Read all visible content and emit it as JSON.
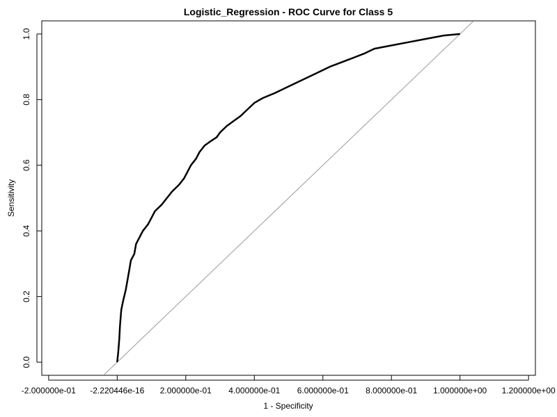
{
  "chart_data": {
    "type": "line",
    "title": "Logistic_Regression - ROC Curve for Class 5",
    "xlabel": "1 - Specificity",
    "ylabel": "Sensitivity",
    "xlim": [
      -0.22,
      1.22
    ],
    "ylim": [
      -0.04,
      1.04
    ],
    "x_ticks": [
      {
        "value": -0.2,
        "label": "-2.000000e-01"
      },
      {
        "value": 0.0,
        "label": "-2.220446e-16"
      },
      {
        "value": 0.2,
        "label": "2.000000e-01"
      },
      {
        "value": 0.4,
        "label": "4.000000e-01"
      },
      {
        "value": 0.6,
        "label": "6.000000e-01"
      },
      {
        "value": 0.8,
        "label": "8.000000e-01"
      },
      {
        "value": 1.0,
        "label": "1.000000e+00"
      },
      {
        "value": 1.2,
        "label": "1.200000e+00"
      }
    ],
    "y_ticks": [
      {
        "value": 0.0,
        "label": "0.0"
      },
      {
        "value": 0.2,
        "label": "0.2"
      },
      {
        "value": 0.4,
        "label": "0.4"
      },
      {
        "value": 0.6,
        "label": "0.6"
      },
      {
        "value": 0.8,
        "label": "0.8"
      },
      {
        "value": 1.0,
        "label": "1.0"
      }
    ],
    "grid": false,
    "colors": {
      "curve": "#000000",
      "reference": "#999999",
      "frame": "#000000"
    },
    "reference_line": {
      "from": [
        -0.04,
        -0.04
      ],
      "to": [
        1.04,
        1.04
      ]
    },
    "series": [
      {
        "points": [
          [
            0.0,
            0.0
          ],
          [
            0.003,
            0.03
          ],
          [
            0.006,
            0.07
          ],
          [
            0.008,
            0.11
          ],
          [
            0.012,
            0.16
          ],
          [
            0.018,
            0.19
          ],
          [
            0.025,
            0.22
          ],
          [
            0.03,
            0.25
          ],
          [
            0.035,
            0.28
          ],
          [
            0.04,
            0.31
          ],
          [
            0.05,
            0.33
          ],
          [
            0.055,
            0.36
          ],
          [
            0.065,
            0.38
          ],
          [
            0.075,
            0.4
          ],
          [
            0.09,
            0.42
          ],
          [
            0.1,
            0.44
          ],
          [
            0.11,
            0.46
          ],
          [
            0.13,
            0.48
          ],
          [
            0.145,
            0.5
          ],
          [
            0.16,
            0.52
          ],
          [
            0.18,
            0.54
          ],
          [
            0.195,
            0.56
          ],
          [
            0.205,
            0.58
          ],
          [
            0.215,
            0.6
          ],
          [
            0.23,
            0.62
          ],
          [
            0.24,
            0.64
          ],
          [
            0.255,
            0.66
          ],
          [
            0.275,
            0.675
          ],
          [
            0.29,
            0.685
          ],
          [
            0.3,
            0.7
          ],
          [
            0.32,
            0.72
          ],
          [
            0.34,
            0.735
          ],
          [
            0.36,
            0.75
          ],
          [
            0.38,
            0.77
          ],
          [
            0.4,
            0.79
          ],
          [
            0.425,
            0.805
          ],
          [
            0.46,
            0.82
          ],
          [
            0.5,
            0.84
          ],
          [
            0.54,
            0.86
          ],
          [
            0.58,
            0.88
          ],
          [
            0.62,
            0.9
          ],
          [
            0.67,
            0.92
          ],
          [
            0.72,
            0.94
          ],
          [
            0.75,
            0.955
          ],
          [
            0.8,
            0.965
          ],
          [
            0.85,
            0.975
          ],
          [
            0.9,
            0.985
          ],
          [
            0.95,
            0.995
          ],
          [
            1.0,
            1.0
          ]
        ]
      }
    ]
  }
}
